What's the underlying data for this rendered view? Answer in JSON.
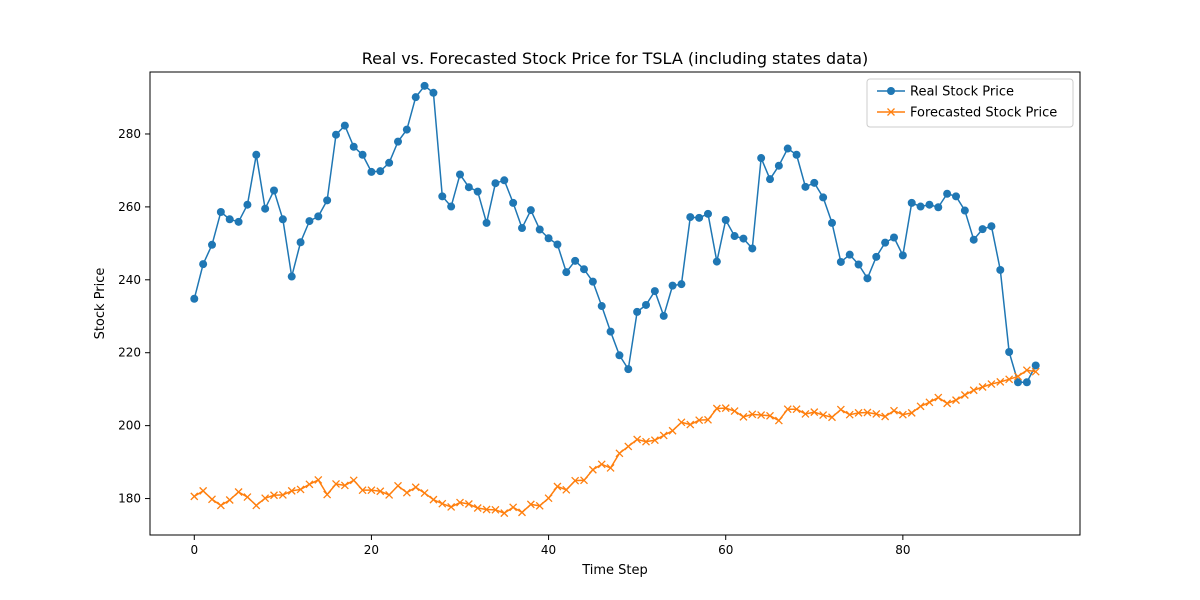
{
  "chart_data": {
    "type": "line",
    "title": "Real vs. Forecasted Stock Price for TSLA (including states data)",
    "xlabel": "Time Step",
    "ylabel": "Stock Price",
    "xlim": [
      -5,
      100
    ],
    "ylim": [
      170,
      297
    ],
    "x_ticks": [
      0,
      20,
      40,
      60,
      80
    ],
    "y_ticks": [
      180,
      200,
      220,
      240,
      260,
      280
    ],
    "grid": false,
    "legend_position": "top-right",
    "series": [
      {
        "name": "Real Stock Price",
        "color": "#1f77b4",
        "marker": "circle",
        "values": [
          234.8,
          244.3,
          249.6,
          258.6,
          256.6,
          255.9,
          260.6,
          274.3,
          259.5,
          264.5,
          256.6,
          240.9,
          250.3,
          256.1,
          257.4,
          261.8,
          279.8,
          282.3,
          276.5,
          274.3,
          269.6,
          269.8,
          272.1,
          277.9,
          281.2,
          290.1,
          293.2,
          291.3,
          262.9,
          260.1,
          268.9,
          265.4,
          264.2,
          255.6,
          266.5,
          267.3,
          261.1,
          254.2,
          259.1,
          253.8,
          251.4,
          249.7,
          242.1,
          245.2,
          242.9,
          239.5,
          232.8,
          225.8,
          219.3,
          215.5,
          231.2,
          233.1,
          236.9,
          230.1,
          238.4,
          238.8,
          257.2,
          257.0,
          258.1,
          245.0,
          256.4,
          252.0,
          251.3,
          248.6,
          273.4,
          267.6,
          271.3,
          276.0,
          274.3,
          265.5,
          266.6,
          262.6,
          255.6,
          244.9,
          246.9,
          244.2,
          240.4,
          246.3,
          250.2,
          251.6,
          246.7,
          261.1,
          260.1,
          260.6,
          259.9,
          263.6,
          262.9,
          259.0,
          251.0,
          253.9,
          254.7,
          242.7,
          220.2,
          211.9,
          211.9,
          216.5
        ]
      },
      {
        "name": "Forecasted Stock Price",
        "color": "#ff7f0e",
        "marker": "x",
        "values": [
          180.6,
          182.1,
          179.8,
          178.1,
          179.6,
          181.8,
          180.4,
          178.1,
          180.1,
          180.9,
          181.0,
          182.1,
          182.5,
          183.9,
          185.1,
          181.1,
          184.0,
          183.6,
          185.0,
          182.3,
          182.3,
          182.0,
          181.0,
          183.5,
          181.6,
          183.1,
          181.5,
          179.7,
          178.6,
          177.7,
          178.9,
          178.5,
          177.4,
          177.0,
          176.9,
          176.0,
          177.6,
          176.2,
          178.4,
          178.0,
          180.1,
          183.3,
          182.4,
          184.9,
          185.0,
          187.9,
          189.4,
          188.4,
          192.4,
          194.3,
          196.2,
          195.6,
          196.0,
          197.3,
          198.6,
          200.9,
          200.3,
          201.5,
          201.6,
          204.7,
          204.8,
          204.0,
          202.4,
          203.1,
          202.9,
          202.7,
          201.4,
          204.5,
          204.5,
          203.2,
          203.7,
          202.9,
          202.3,
          204.4,
          203.0,
          203.5,
          203.6,
          203.2,
          202.5,
          204.1,
          203.0,
          203.5,
          205.3,
          206.4,
          207.7,
          206.1,
          207.0,
          208.4,
          209.7,
          210.6,
          211.4,
          212.0,
          212.7,
          213.5,
          215.2,
          214.8
        ]
      }
    ]
  }
}
